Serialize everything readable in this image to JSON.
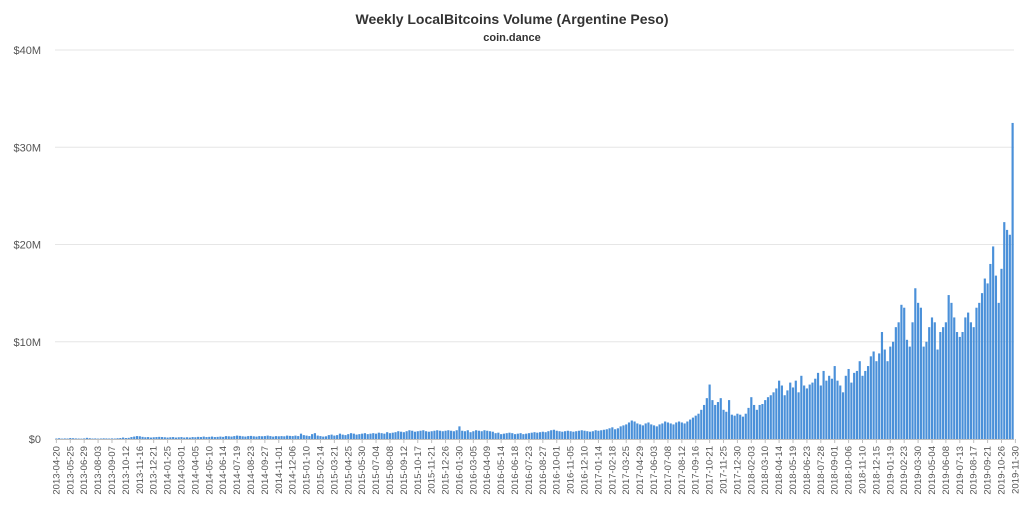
{
  "chart_data": {
    "type": "bar",
    "title": "Weekly LocalBitcoins Volume (Argentine Peso)",
    "subtitle": "coin.dance",
    "xlabel": "",
    "ylabel": "",
    "ylim": [
      0,
      40000000
    ],
    "yticks": [
      {
        "value": 0,
        "label": "$0"
      },
      {
        "value": 10000000,
        "label": "$10M"
      },
      {
        "value": 20000000,
        "label": "$20M"
      },
      {
        "value": 30000000,
        "label": "$30M"
      },
      {
        "value": 40000000,
        "label": "$40M"
      }
    ],
    "grid": true,
    "bar_color": "#4a90d9",
    "tick_labels": [
      "2013-04-20",
      "2013-05-25",
      "2013-06-29",
      "2013-08-03",
      "2013-09-07",
      "2013-10-12",
      "2013-11-16",
      "2013-12-21",
      "2014-01-25",
      "2014-03-01",
      "2014-04-05",
      "2014-05-10",
      "2014-06-14",
      "2014-07-19",
      "2014-08-23",
      "2014-09-27",
      "2014-11-01",
      "2014-12-06",
      "2015-01-10",
      "2015-02-14",
      "2015-03-21",
      "2015-04-25",
      "2015-05-30",
      "2015-07-04",
      "2015-08-08",
      "2015-09-12",
      "2015-10-17",
      "2015-11-21",
      "2015-12-26",
      "2016-01-30",
      "2016-03-05",
      "2016-04-09",
      "2016-05-14",
      "2016-06-18",
      "2016-07-23",
      "2016-08-27",
      "2016-10-01",
      "2016-11-05",
      "2016-12-10",
      "2017-01-14",
      "2017-02-18",
      "2017-03-25",
      "2017-04-29",
      "2017-06-03",
      "2017-07-08",
      "2017-08-12",
      "2017-09-16",
      "2017-10-21",
      "2017-11-25",
      "2017-12-30",
      "2018-02-03",
      "2018-03-10",
      "2018-04-14",
      "2018-05-19",
      "2018-06-23",
      "2018-07-28",
      "2018-09-01",
      "2018-10-06",
      "2018-11-10",
      "2018-12-15",
      "2019-01-19",
      "2019-02-23",
      "2019-03-30",
      "2019-05-04",
      "2019-06-08",
      "2019-07-13",
      "2019-08-17",
      "2019-09-21",
      "2019-10-26",
      "2019-11-30"
    ],
    "start_week": "2013-04-20",
    "values_millions": [
      0.05,
      0.08,
      0.04,
      0.06,
      0.05,
      0.1,
      0.08,
      0.06,
      0.05,
      0.04,
      0.06,
      0.12,
      0.08,
      0.05,
      0.06,
      0.04,
      0.05,
      0.07,
      0.06,
      0.05,
      0.06,
      0.05,
      0.08,
      0.1,
      0.15,
      0.1,
      0.12,
      0.2,
      0.25,
      0.3,
      0.28,
      0.22,
      0.18,
      0.2,
      0.15,
      0.18,
      0.2,
      0.22,
      0.2,
      0.18,
      0.15,
      0.18,
      0.2,
      0.15,
      0.18,
      0.2,
      0.15,
      0.18,
      0.15,
      0.2,
      0.18,
      0.22,
      0.2,
      0.25,
      0.2,
      0.22,
      0.25,
      0.2,
      0.22,
      0.25,
      0.22,
      0.3,
      0.28,
      0.25,
      0.3,
      0.35,
      0.32,
      0.28,
      0.25,
      0.3,
      0.32,
      0.28,
      0.25,
      0.3,
      0.28,
      0.3,
      0.35,
      0.3,
      0.25,
      0.3,
      0.28,
      0.3,
      0.28,
      0.35,
      0.32,
      0.3,
      0.35,
      0.3,
      0.55,
      0.4,
      0.35,
      0.3,
      0.5,
      0.6,
      0.35,
      0.3,
      0.25,
      0.28,
      0.4,
      0.45,
      0.35,
      0.4,
      0.55,
      0.45,
      0.4,
      0.5,
      0.6,
      0.55,
      0.45,
      0.5,
      0.55,
      0.6,
      0.5,
      0.55,
      0.6,
      0.55,
      0.65,
      0.6,
      0.55,
      0.7,
      0.6,
      0.65,
      0.7,
      0.8,
      0.75,
      0.7,
      0.8,
      0.9,
      0.85,
      0.75,
      0.8,
      0.85,
      0.9,
      0.8,
      0.75,
      0.8,
      0.85,
      0.9,
      0.85,
      0.8,
      0.85,
      0.9,
      0.85,
      0.8,
      0.9,
      1.3,
      0.85,
      0.8,
      0.9,
      0.7,
      0.8,
      0.9,
      0.85,
      0.8,
      0.9,
      0.85,
      0.8,
      0.75,
      0.6,
      0.65,
      0.5,
      0.55,
      0.6,
      0.65,
      0.6,
      0.5,
      0.55,
      0.6,
      0.5,
      0.55,
      0.6,
      0.65,
      0.7,
      0.65,
      0.7,
      0.75,
      0.7,
      0.8,
      0.9,
      0.95,
      0.85,
      0.8,
      0.75,
      0.8,
      0.85,
      0.8,
      0.75,
      0.8,
      0.85,
      0.9,
      0.85,
      0.8,
      0.75,
      0.8,
      0.9,
      0.85,
      0.9,
      0.95,
      1.0,
      1.1,
      1.2,
      1.0,
      1.1,
      1.3,
      1.4,
      1.5,
      1.7,
      1.9,
      1.8,
      1.6,
      1.5,
      1.4,
      1.6,
      1.7,
      1.5,
      1.4,
      1.3,
      1.5,
      1.6,
      1.8,
      1.7,
      1.6,
      1.5,
      1.7,
      1.8,
      1.7,
      1.6,
      1.8,
      2.0,
      2.2,
      2.4,
      2.6,
      3.0,
      3.5,
      4.2,
      5.6,
      4.0,
      3.5,
      3.8,
      4.2,
      3.0,
      2.8,
      4.0,
      2.5,
      2.4,
      2.6,
      2.5,
      2.3,
      2.6,
      3.2,
      4.3,
      3.5,
      3.0,
      3.5,
      3.6,
      4.0,
      4.3,
      4.5,
      4.8,
      5.2,
      6.0,
      5.5,
      4.5,
      5.0,
      5.8,
      5.3,
      6.0,
      4.8,
      6.5,
      5.5,
      5.2,
      5.6,
      5.8,
      6.2,
      6.8,
      5.5,
      7.0,
      6.0,
      6.5,
      6.2,
      7.5,
      6.0,
      5.5,
      4.8,
      6.5,
      7.2,
      5.8,
      6.8,
      7.0,
      8.0,
      6.5,
      7.0,
      7.5,
      8.5,
      9.0,
      8.0,
      8.8,
      11.0,
      9.2,
      8.0,
      9.5,
      10.0,
      11.5,
      12.0,
      13.8,
      13.5,
      10.2,
      9.5,
      12.0,
      15.5,
      14.0,
      13.5,
      9.5,
      10.0,
      11.5,
      12.5,
      12.0,
      9.2,
      11.0,
      11.5,
      12.0,
      14.8,
      14.0,
      12.5,
      11.0,
      10.5,
      11.0,
      12.5,
      13.0,
      12.0,
      11.5,
      13.5,
      14.0,
      15.0,
      16.5,
      16.0,
      18.0,
      19.8,
      16.8,
      14.0,
      17.5,
      22.3,
      21.5,
      21.0,
      32.5
    ]
  }
}
